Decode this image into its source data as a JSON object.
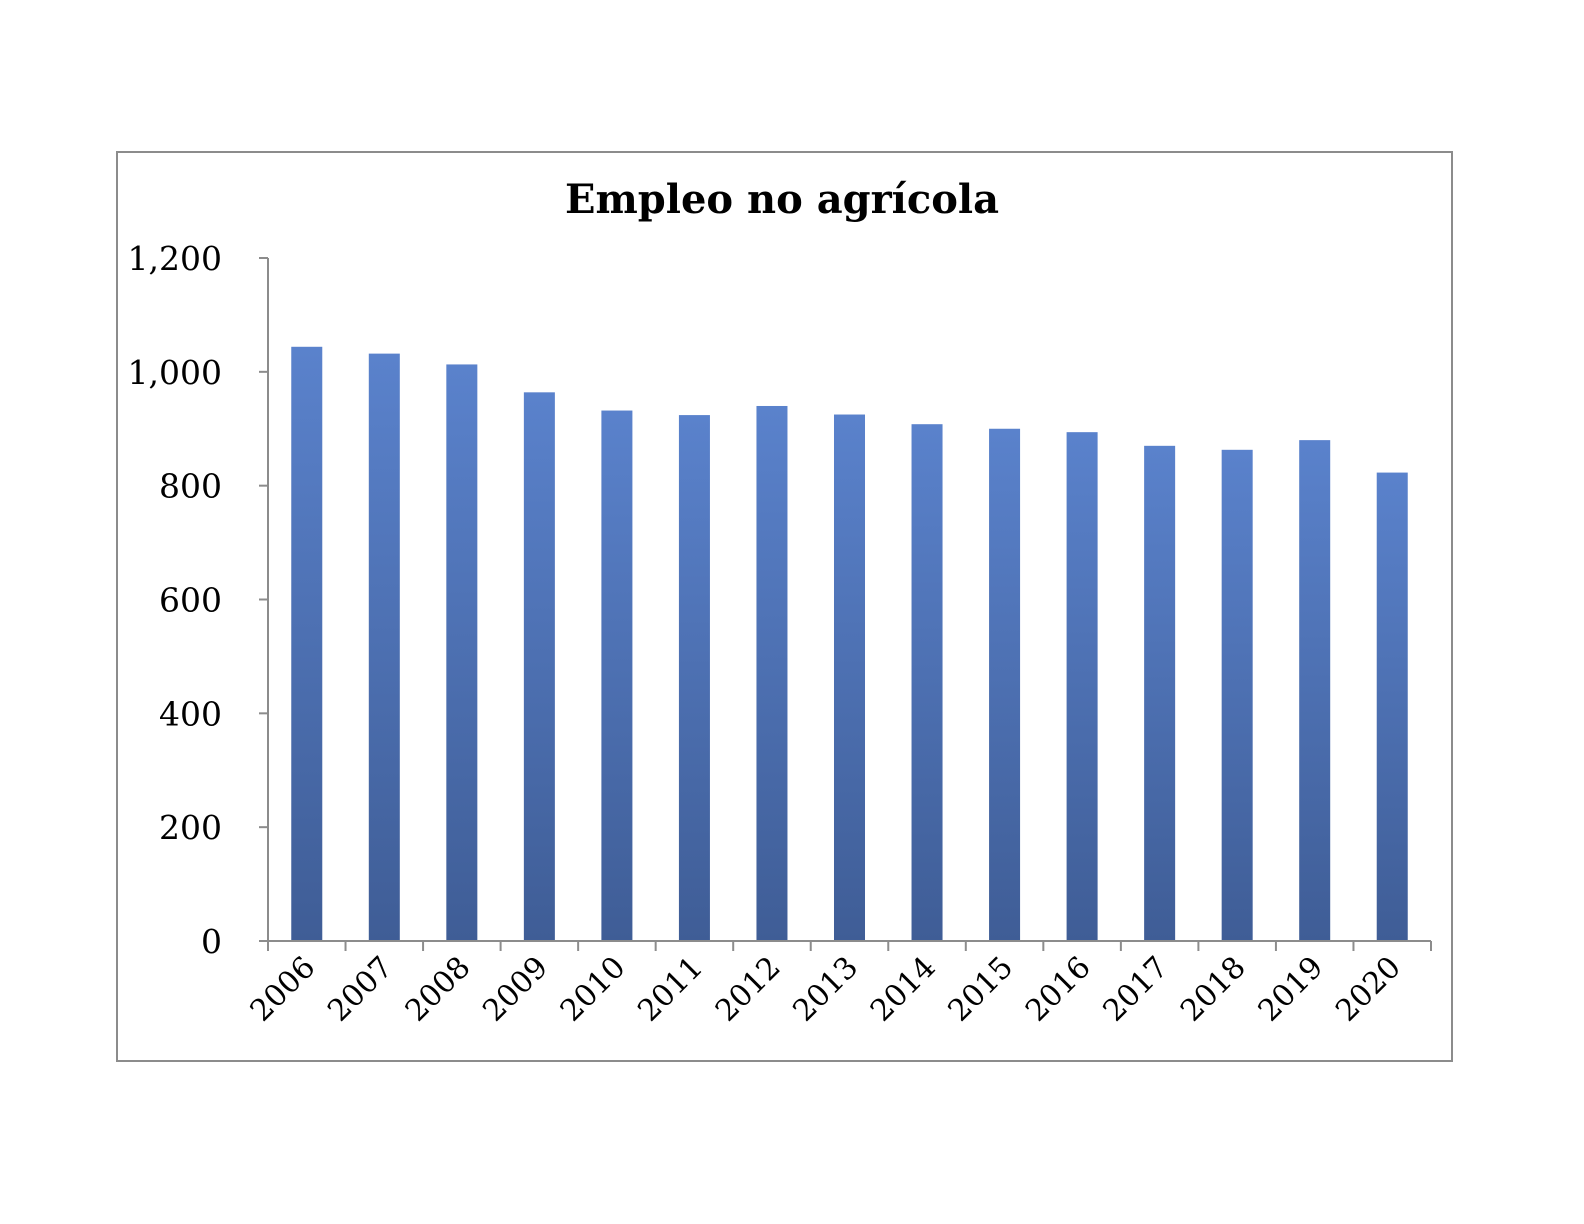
{
  "chart_data": {
    "type": "bar",
    "title": "Empleo no agrícola",
    "xlabel": "",
    "ylabel": "",
    "categories": [
      "2006",
      "2007",
      "2008",
      "2009",
      "2010",
      "2011",
      "2012",
      "2013",
      "2014",
      "2015",
      "2016",
      "2017",
      "2018",
      "2019",
      "2020"
    ],
    "values": [
      1044,
      1032,
      1013,
      964,
      932,
      924,
      940,
      925,
      908,
      900,
      894,
      870,
      863,
      880,
      823
    ],
    "ylim": [
      0,
      1200
    ],
    "yticks": [
      "0",
      "200",
      "400",
      "600",
      "800",
      "1,000",
      "1,200"
    ],
    "ytick_values": [
      0,
      200,
      400,
      600,
      800,
      1000,
      1200
    ],
    "grid": false,
    "legend": "none",
    "colors": {
      "bar_top": "#5a82cc",
      "bar_bottom": "#3f5d96",
      "axis": "#8c8c8c",
      "frame": "#8c8c8c"
    }
  }
}
